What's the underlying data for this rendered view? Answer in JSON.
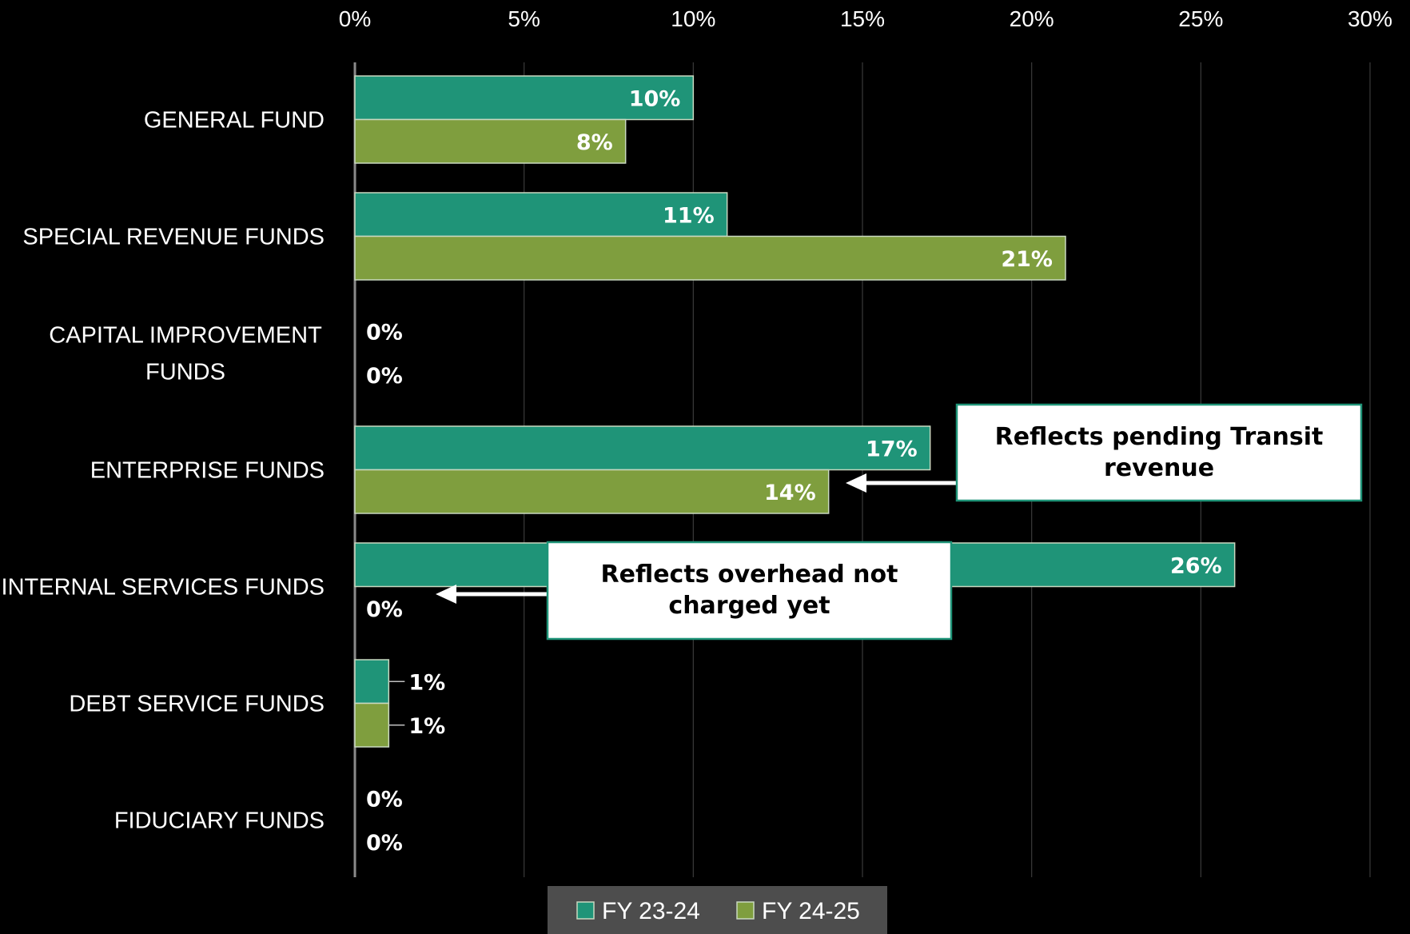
{
  "chart_data": {
    "type": "bar",
    "orientation": "horizontal",
    "categories": [
      [
        "GENERAL FUND"
      ],
      [
        "SPECIAL REVENUE FUNDS"
      ],
      [
        "CAPITAL IMPROVEMENT",
        "FUNDS"
      ],
      [
        "ENTERPRISE FUNDS"
      ],
      [
        "INTERNAL SERVICES FUNDS"
      ],
      [
        "DEBT SERVICE FUNDS"
      ],
      [
        "FIDUCIARY FUNDS"
      ]
    ],
    "series": [
      {
        "name": "FY 23-24",
        "color": "#1f9478",
        "values": [
          10,
          11,
          0,
          17,
          26,
          1,
          0
        ]
      },
      {
        "name": "FY 24-25",
        "color": "#7f9e3e",
        "values": [
          8,
          21,
          0,
          14,
          0,
          1,
          0
        ]
      }
    ],
    "xlim": [
      0,
      30
    ],
    "xticks": [
      0,
      5,
      10,
      15,
      20,
      25,
      30
    ],
    "tick_suffix": "%",
    "grid": true,
    "axis_position": "top",
    "legend_position": "bottom",
    "background": "#000000",
    "annotations": [
      {
        "lines": [
          "Reflects pending Transit",
          "revenue"
        ],
        "category_index": 3,
        "series_index": 1
      },
      {
        "lines": [
          "Reflects overhead not",
          "charged yet"
        ],
        "category_index": 4,
        "series_index": 1
      }
    ]
  }
}
